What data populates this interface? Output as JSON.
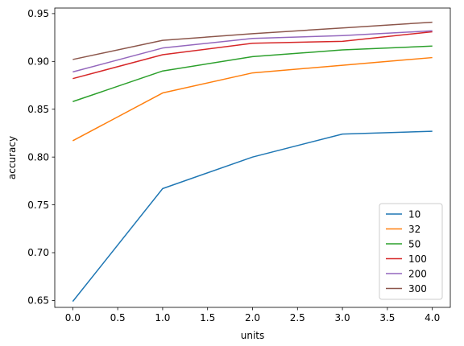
{
  "chart_data": {
    "type": "line",
    "title": "",
    "xlabel": "units",
    "ylabel": "accuracy",
    "x": [
      0,
      1,
      2,
      3,
      4
    ],
    "xlim": [
      -0.2,
      4.2
    ],
    "ylim": [
      0.6428,
      0.9558
    ],
    "xticks": [
      0.0,
      0.5,
      1.0,
      1.5,
      2.0,
      2.5,
      3.0,
      3.5,
      4.0
    ],
    "xtick_labels": [
      "0.0",
      "0.5",
      "1.0",
      "1.5",
      "2.0",
      "2.5",
      "3.0",
      "3.5",
      "4.0"
    ],
    "yticks": [
      0.65,
      0.7,
      0.75,
      0.8,
      0.85,
      0.9,
      0.95
    ],
    "ytick_labels": [
      "0.65",
      "0.70",
      "0.75",
      "0.80",
      "0.85",
      "0.90",
      "0.95"
    ],
    "grid": false,
    "legend_position": "lower-right",
    "series": [
      {
        "name": "10",
        "color": "#1f77b4",
        "values": [
          0.649,
          0.767,
          0.8,
          0.824,
          0.827
        ]
      },
      {
        "name": "32",
        "color": "#ff7f0e",
        "values": [
          0.817,
          0.867,
          0.888,
          0.896,
          0.904
        ]
      },
      {
        "name": "50",
        "color": "#2ca02c",
        "values": [
          0.858,
          0.89,
          0.905,
          0.912,
          0.916
        ]
      },
      {
        "name": "100",
        "color": "#d62728",
        "values": [
          0.882,
          0.907,
          0.919,
          0.921,
          0.931
        ]
      },
      {
        "name": "200",
        "color": "#9467bd",
        "values": [
          0.889,
          0.914,
          0.924,
          0.927,
          0.932
        ]
      },
      {
        "name": "300",
        "color": "#8c564b",
        "values": [
          0.902,
          0.922,
          0.929,
          0.935,
          0.941
        ]
      }
    ]
  }
}
